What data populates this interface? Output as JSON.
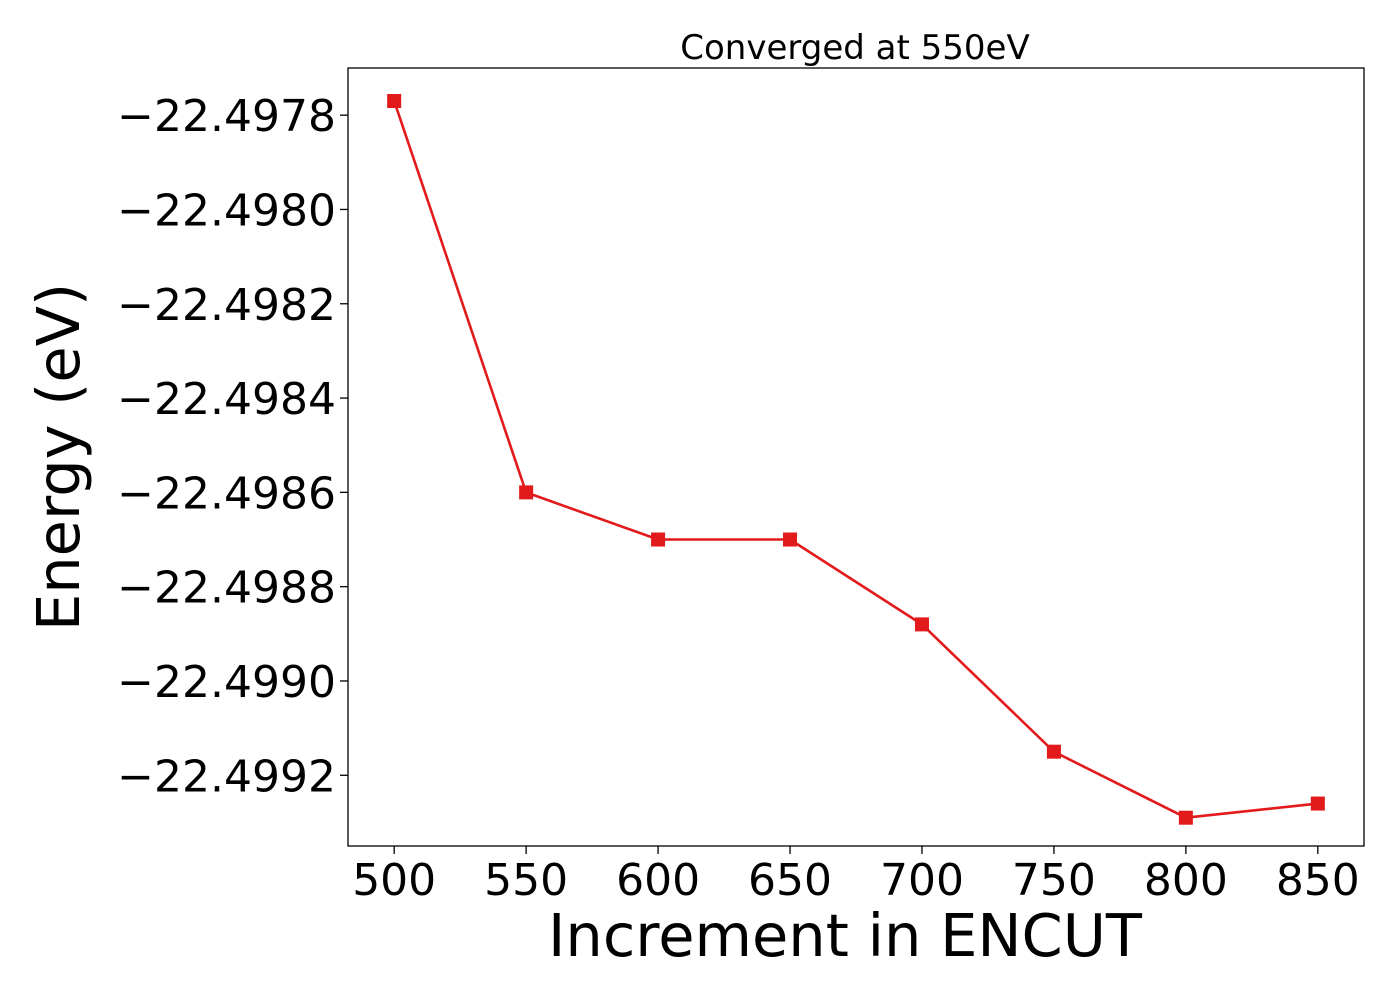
{
  "chart_data": {
    "type": "line",
    "title": "Converged at 550eV",
    "xlabel": "Increment in ENCUT",
    "ylabel": "Energy (eV)",
    "x": [
      500,
      550,
      600,
      650,
      700,
      750,
      800,
      850
    ],
    "series": [
      {
        "values": [
          -22.49777,
          -22.4986,
          -22.4987,
          -22.4987,
          -22.49888,
          -22.49915,
          -22.49929,
          -22.49926
        ],
        "color": "#e31a1c",
        "marker": "square"
      }
    ],
    "xlim": [
      482.5,
      867.5
    ],
    "ylim": [
      -22.49935,
      -22.4977
    ],
    "xticks": [
      500,
      550,
      600,
      650,
      700,
      750,
      800,
      850
    ],
    "xtick_labels": [
      "500",
      "550",
      "600",
      "650",
      "700",
      "750",
      "800",
      "850"
    ],
    "yticks": [
      -22.4978,
      -22.498,
      -22.4982,
      -22.4984,
      -22.4986,
      -22.4988,
      -22.499,
      -22.4992
    ],
    "ytick_labels": [
      "−22.4978",
      "−22.4980",
      "−22.4982",
      "−22.4984",
      "−22.4986",
      "−22.4988",
      "−22.4990",
      "−22.4992"
    ],
    "grid": false,
    "legend": false
  }
}
